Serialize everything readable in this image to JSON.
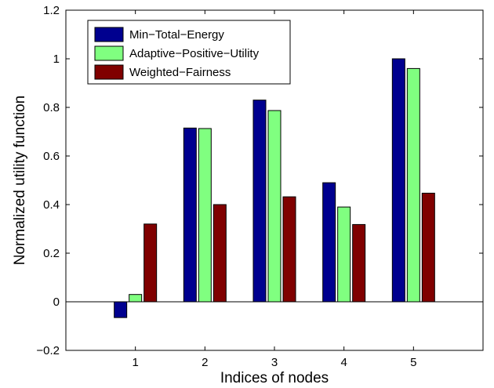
{
  "chart_data": {
    "type": "bar",
    "title": "",
    "xlabel": "Indices of nodes",
    "ylabel": "Normalized utility function",
    "categories": [
      "1",
      "2",
      "3",
      "4",
      "5"
    ],
    "series": [
      {
        "name": "Min−Total−Energy",
        "color": "#00008f",
        "values": [
          -0.065,
          0.715,
          0.83,
          0.49,
          1.0
        ]
      },
      {
        "name": "Adaptive−Positive−Utility",
        "color": "#80ff80",
        "values": [
          0.03,
          0.713,
          0.787,
          0.39,
          0.96
        ]
      },
      {
        "name": "Weighted−Fairness",
        "color": "#800000",
        "values": [
          0.32,
          0.4,
          0.432,
          0.318,
          0.447
        ]
      }
    ],
    "ylim": [
      -0.2,
      1.2
    ],
    "yticks": [
      -0.2,
      0,
      0.2,
      0.4,
      0.6,
      0.8,
      1,
      1.2
    ],
    "ytick_labels": [
      "−0.2",
      "0",
      "0.2",
      "0.4",
      "0.6",
      "0.8",
      "1",
      "1.2"
    ],
    "xlim": [
      0,
      6
    ],
    "grid": false,
    "legend_position": "top-left"
  }
}
